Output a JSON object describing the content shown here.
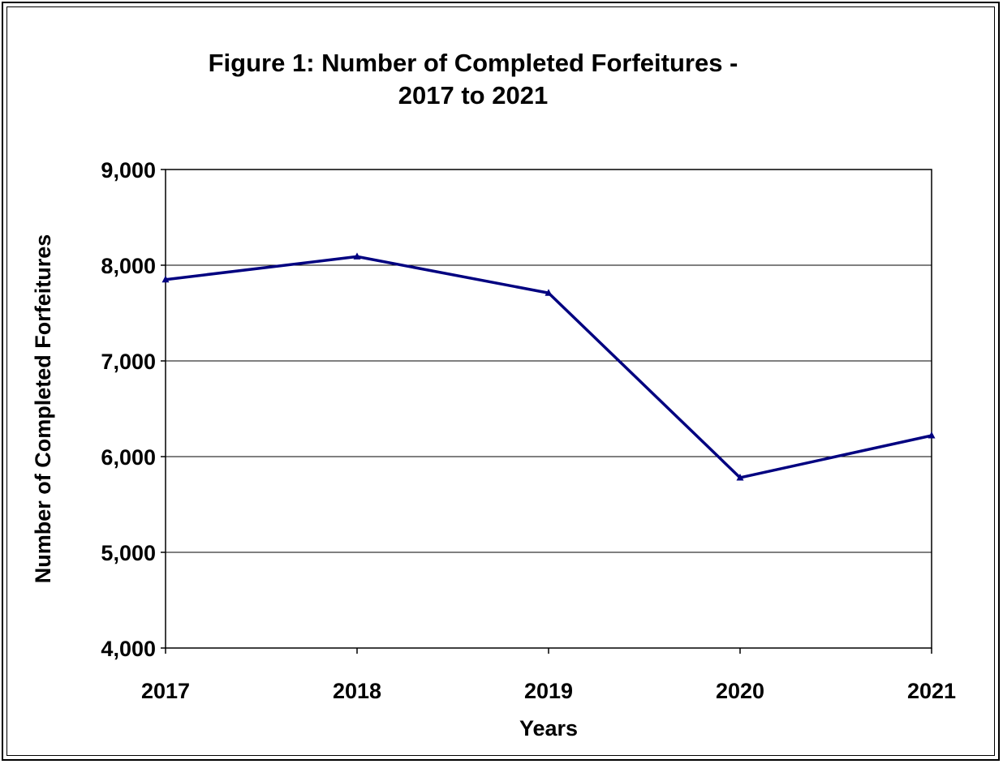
{
  "chart_data": {
    "type": "line",
    "title_lines": [
      "Figure 1:  Number of Completed Forfeitures -",
      "2017 to 2021"
    ],
    "xlabel": "Years",
    "ylabel": "Number of Completed Forfeitures",
    "categories": [
      "2017",
      "2018",
      "2019",
      "2020",
      "2021"
    ],
    "series": [
      {
        "values": [
          7850,
          8090,
          7710,
          5780,
          6220
        ]
      }
    ],
    "ylim": [
      4000,
      9000
    ],
    "yticks": [
      4000,
      5000,
      6000,
      7000,
      8000,
      9000
    ],
    "ytick_labels": [
      "4,000",
      "5,000",
      "6,000",
      "7,000",
      "8,000",
      "9,000"
    ],
    "grid": true,
    "line_color": "#000080",
    "legend": "none"
  }
}
